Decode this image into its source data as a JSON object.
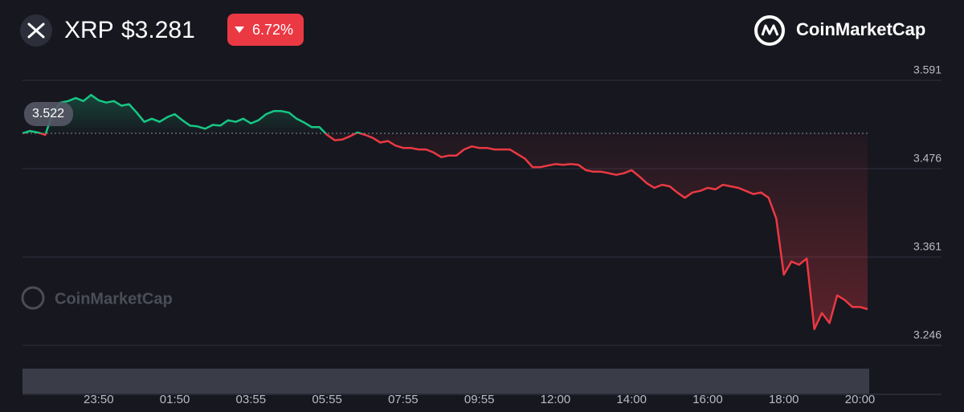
{
  "chart_data": {
    "type": "line",
    "symbol": "XRP",
    "price_label": "$3.281",
    "change_label": "6.72%",
    "brand": "CoinMarketCap",
    "watermark": "CoinMarketCap",
    "up_color": "#16c784",
    "down_color": "#ea3943",
    "baseline": 3.522,
    "grid": true,
    "categories": [
      null,
      null,
      null,
      null,
      null,
      null,
      null,
      null,
      null,
      null,
      "23:50",
      null,
      null,
      null,
      null,
      null,
      null,
      null,
      null,
      null,
      "01:50",
      null,
      null,
      null,
      null,
      null,
      null,
      null,
      null,
      null,
      "03:55",
      null,
      null,
      null,
      null,
      null,
      null,
      null,
      null,
      null,
      "05:55",
      null,
      null,
      null,
      null,
      null,
      null,
      null,
      null,
      null,
      "07:55",
      null,
      null,
      null,
      null,
      null,
      null,
      null,
      null,
      null,
      "09:55",
      null,
      null,
      null,
      null,
      null,
      null,
      null,
      null,
      null,
      "12:00",
      null,
      null,
      null,
      null,
      null,
      null,
      null,
      null,
      null,
      "14:00",
      null,
      null,
      null,
      null,
      null,
      null,
      null,
      null,
      null,
      "16:00",
      null,
      null,
      null,
      null,
      null,
      null,
      null,
      null,
      null,
      "18:00",
      null,
      null,
      null,
      null,
      null,
      null,
      null,
      null,
      null,
      "20:00",
      null
    ],
    "values": [
      3.522,
      3.525,
      3.523,
      3.52,
      3.549,
      3.562,
      3.564,
      3.568,
      3.564,
      3.572,
      3.565,
      3.562,
      3.564,
      3.558,
      3.56,
      3.549,
      3.537,
      3.541,
      3.537,
      3.543,
      3.547,
      3.539,
      3.532,
      3.531,
      3.528,
      3.533,
      3.532,
      3.539,
      3.537,
      3.541,
      3.535,
      3.539,
      3.547,
      3.551,
      3.551,
      3.549,
      3.541,
      3.536,
      3.53,
      3.53,
      3.52,
      3.513,
      3.514,
      3.518,
      3.523,
      3.52,
      3.516,
      3.51,
      3.512,
      3.506,
      3.503,
      3.503,
      3.501,
      3.501,
      3.497,
      3.491,
      3.493,
      3.493,
      3.501,
      3.505,
      3.503,
      3.503,
      3.501,
      3.501,
      3.501,
      3.495,
      3.489,
      3.478,
      3.478,
      3.48,
      3.482,
      3.481,
      3.482,
      3.481,
      3.474,
      3.472,
      3.472,
      3.47,
      3.468,
      3.47,
      3.474,
      3.466,
      3.457,
      3.451,
      3.455,
      3.453,
      3.445,
      3.438,
      3.445,
      3.447,
      3.451,
      3.449,
      3.455,
      3.453,
      3.451,
      3.447,
      3.443,
      3.445,
      3.438,
      3.411,
      3.338,
      3.355,
      3.351,
      3.359,
      3.267,
      3.288,
      3.275,
      3.311,
      3.305,
      3.296,
      3.296,
      3.293
    ],
    "ylim": [
      3.246,
      3.591
    ],
    "yticks": [
      3.246,
      3.361,
      3.476,
      3.591
    ]
  }
}
